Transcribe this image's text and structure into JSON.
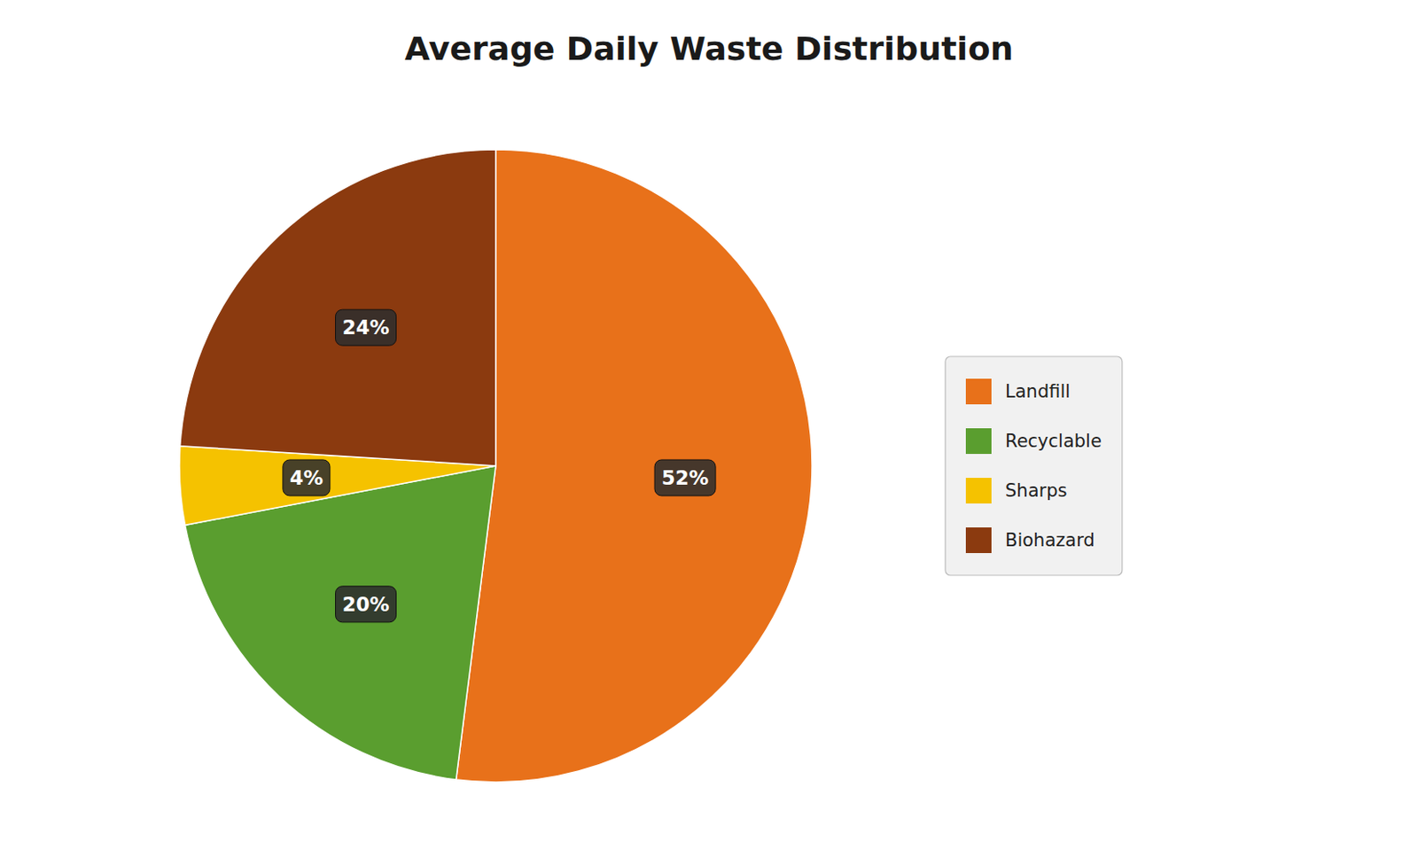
{
  "chart_data": {
    "type": "pie",
    "title": "Average Daily Waste Distribution",
    "categories": [
      "Landfill",
      "Recyclable",
      "Sharps",
      "Biohazard"
    ],
    "values": [
      52,
      20,
      4,
      24
    ],
    "value_labels": [
      "52%",
      "20%",
      "4%",
      "24%"
    ],
    "colors": [
      "#E8711A",
      "#5A9E2F",
      "#F5C200",
      "#8B3A0F"
    ],
    "data_labels": true,
    "legend": "right"
  }
}
